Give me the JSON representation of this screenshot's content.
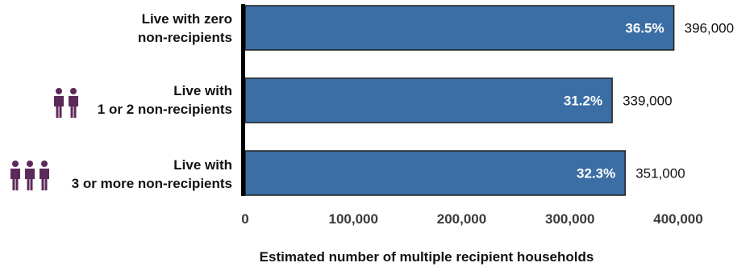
{
  "chart_data": {
    "type": "bar",
    "orientation": "horizontal",
    "categories": [
      [
        "Live with zero",
        "non-recipients"
      ],
      [
        "Live with",
        "1 or 2 non-recipients"
      ],
      [
        "Live with",
        "3 or more non-recipients"
      ]
    ],
    "category_icons": [
      null,
      "two-people-icon",
      "three-people-icon"
    ],
    "values": [
      396000,
      339000,
      351000
    ],
    "value_labels": [
      "396,000",
      "339,000",
      "351,000"
    ],
    "percent_labels": [
      "36.5%",
      "31.2%",
      "32.3%"
    ],
    "xlabel": "Estimated number of multiple recipient households",
    "xlim": [
      0,
      400000
    ],
    "xticks": [
      0,
      100000,
      200000,
      300000,
      400000
    ],
    "xtick_labels": [
      "0",
      "100,000",
      "200,000",
      "300,000",
      "400,000"
    ],
    "grid": false,
    "colors": {
      "bar": "#3a6ea5",
      "bar_border": "#1f1f1f",
      "icon": "#5c2a5a",
      "axis": "#000000"
    }
  }
}
